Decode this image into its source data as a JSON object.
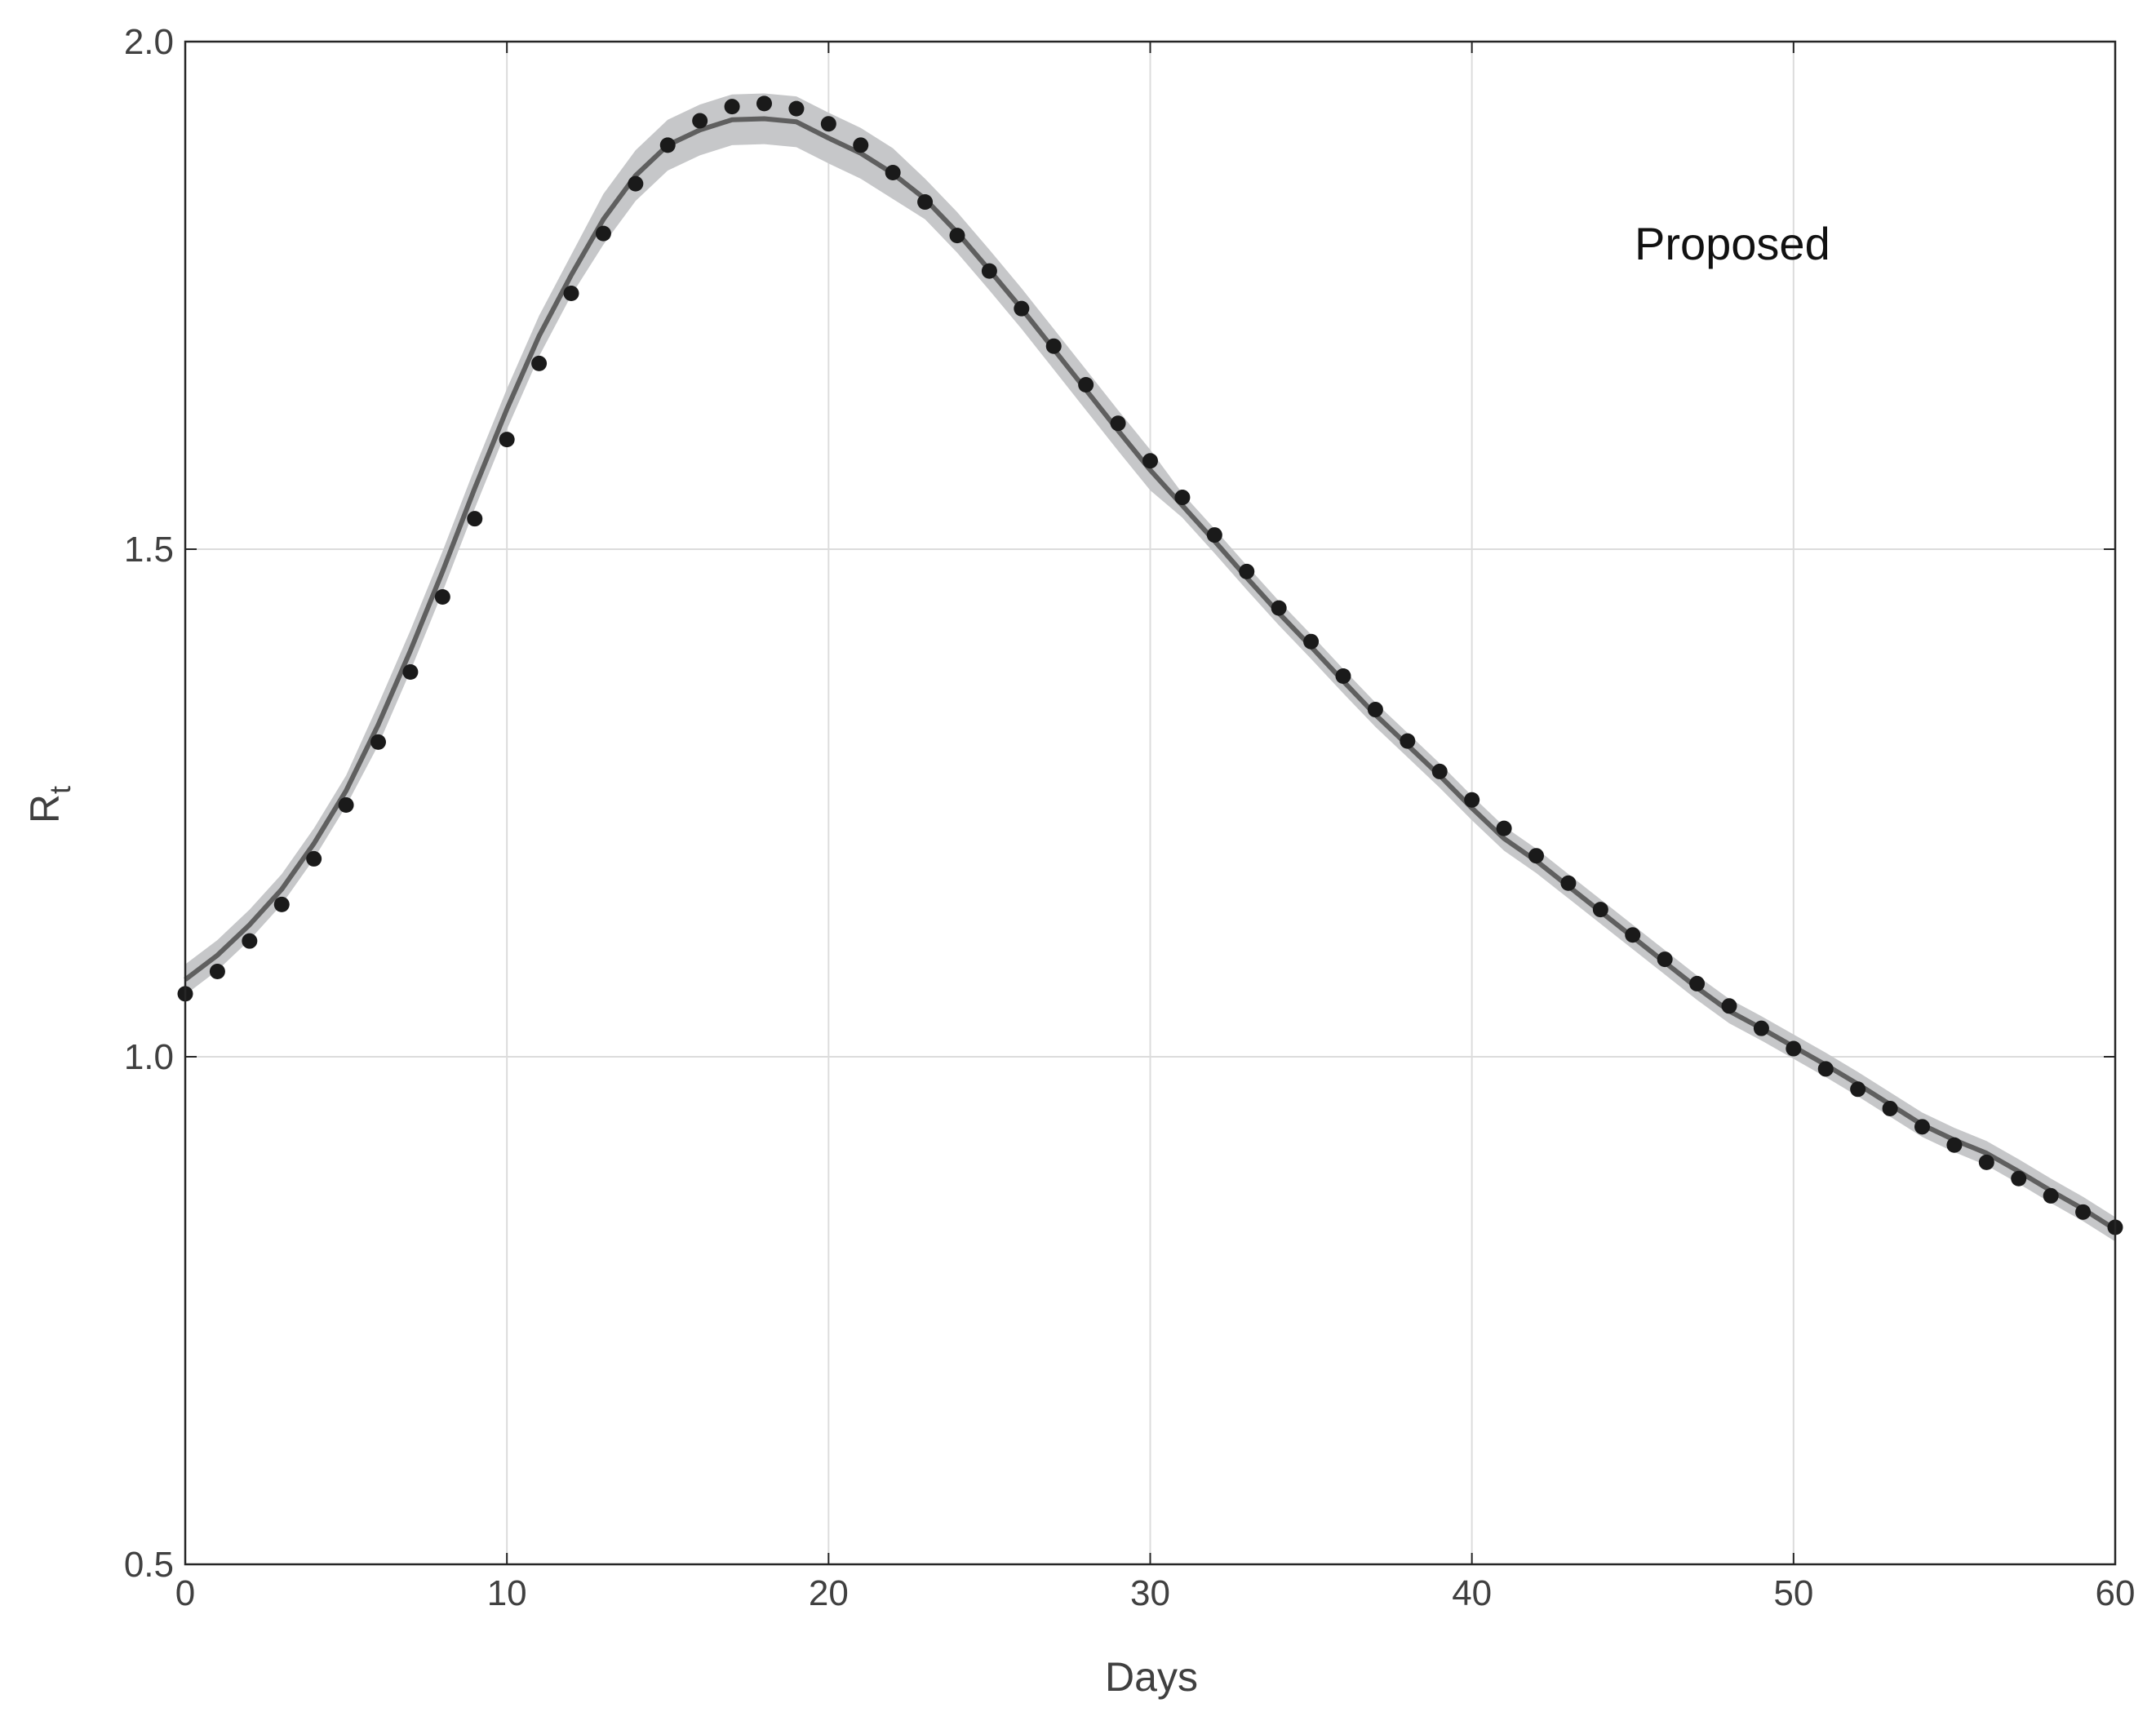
{
  "chart_data": {
    "type": "line",
    "xlabel": "Days",
    "ylabel": "R",
    "ylabel_subscript": "t",
    "annotation": "Proposed",
    "xlim": [
      0,
      60
    ],
    "xticks": [
      0,
      10,
      20,
      30,
      40,
      50,
      60
    ],
    "ylim": [
      0.5,
      2.0
    ],
    "yticks": [
      0.5,
      {
        "value": 1.0,
        "label": "1.0"
      },
      1.5,
      {
        "value": 2.0,
        "label": "2.0"
      }
    ],
    "grid": true,
    "x": [
      0,
      1,
      2,
      3,
      4,
      5,
      6,
      7,
      8,
      9,
      10,
      11,
      12,
      13,
      14,
      15,
      16,
      17,
      18,
      19,
      20,
      21,
      22,
      23,
      24,
      25,
      26,
      27,
      28,
      29,
      30,
      31,
      32,
      33,
      34,
      35,
      36,
      37,
      38,
      39,
      40,
      41,
      42,
      43,
      44,
      45,
      46,
      47,
      48,
      49,
      50,
      51,
      52,
      53,
      54,
      55,
      56,
      57,
      58,
      59,
      60
    ],
    "series": [
      {
        "style": "line",
        "color": "#5f5f5f",
        "band_color": "#c6c7c9",
        "values": [
          1.076,
          1.1,
          1.13,
          1.165,
          1.21,
          1.262,
          1.327,
          1.4,
          1.478,
          1.56,
          1.638,
          1.71,
          1.77,
          1.825,
          1.868,
          1.898,
          1.913,
          1.923,
          1.924,
          1.921,
          1.905,
          1.89,
          1.87,
          1.845,
          1.812,
          1.775,
          1.737,
          1.697,
          1.657,
          1.617,
          1.578,
          1.543,
          1.508,
          1.472,
          1.437,
          1.404,
          1.37,
          1.337,
          1.307,
          1.277,
          1.245,
          1.215,
          1.193,
          1.168,
          1.143,
          1.118,
          1.093,
          1.068,
          1.045,
          1.028,
          1.01,
          0.992,
          0.973,
          0.953,
          0.933,
          0.918,
          0.905,
          0.887,
          0.868,
          0.85,
          0.83
        ],
        "lower": [
          1.061,
          1.085,
          1.115,
          1.15,
          1.195,
          1.247,
          1.307,
          1.38,
          1.458,
          1.54,
          1.618,
          1.69,
          1.75,
          1.8,
          1.843,
          1.873,
          1.888,
          1.898,
          1.899,
          1.896,
          1.88,
          1.865,
          1.845,
          1.825,
          1.792,
          1.755,
          1.717,
          1.677,
          1.637,
          1.597,
          1.558,
          1.531,
          1.496,
          1.46,
          1.425,
          1.392,
          1.358,
          1.325,
          1.295,
          1.265,
          1.233,
          1.203,
          1.181,
          1.156,
          1.131,
          1.106,
          1.081,
          1.056,
          1.033,
          1.016,
          0.998,
          0.98,
          0.961,
          0.941,
          0.921,
          0.906,
          0.893,
          0.875,
          0.856,
          0.838,
          0.818
        ],
        "upper": [
          1.091,
          1.115,
          1.145,
          1.18,
          1.225,
          1.277,
          1.347,
          1.42,
          1.498,
          1.58,
          1.658,
          1.73,
          1.79,
          1.85,
          1.893,
          1.923,
          1.938,
          1.948,
          1.949,
          1.946,
          1.93,
          1.915,
          1.895,
          1.865,
          1.832,
          1.795,
          1.757,
          1.717,
          1.677,
          1.637,
          1.598,
          1.555,
          1.52,
          1.484,
          1.449,
          1.416,
          1.382,
          1.349,
          1.319,
          1.289,
          1.257,
          1.227,
          1.205,
          1.18,
          1.155,
          1.13,
          1.105,
          1.08,
          1.057,
          1.04,
          1.022,
          1.004,
          0.985,
          0.965,
          0.945,
          0.93,
          0.917,
          0.899,
          0.88,
          0.862,
          0.842
        ]
      },
      {
        "style": "markers",
        "color": "#1a1a1a",
        "values": [
          1.062,
          1.084,
          1.114,
          1.15,
          1.195,
          1.248,
          1.31,
          1.379,
          1.453,
          1.53,
          1.608,
          1.683,
          1.752,
          1.811,
          1.86,
          1.898,
          1.922,
          1.936,
          1.939,
          1.934,
          1.919,
          1.898,
          1.871,
          1.842,
          1.809,
          1.774,
          1.737,
          1.7,
          1.662,
          1.624,
          1.587,
          1.551,
          1.514,
          1.478,
          1.442,
          1.409,
          1.375,
          1.342,
          1.311,
          1.281,
          1.253,
          1.225,
          1.198,
          1.171,
          1.145,
          1.12,
          1.096,
          1.072,
          1.05,
          1.028,
          1.008,
          0.988,
          0.968,
          0.949,
          0.931,
          0.913,
          0.896,
          0.88,
          0.863,
          0.847,
          0.832
        ]
      }
    ]
  }
}
